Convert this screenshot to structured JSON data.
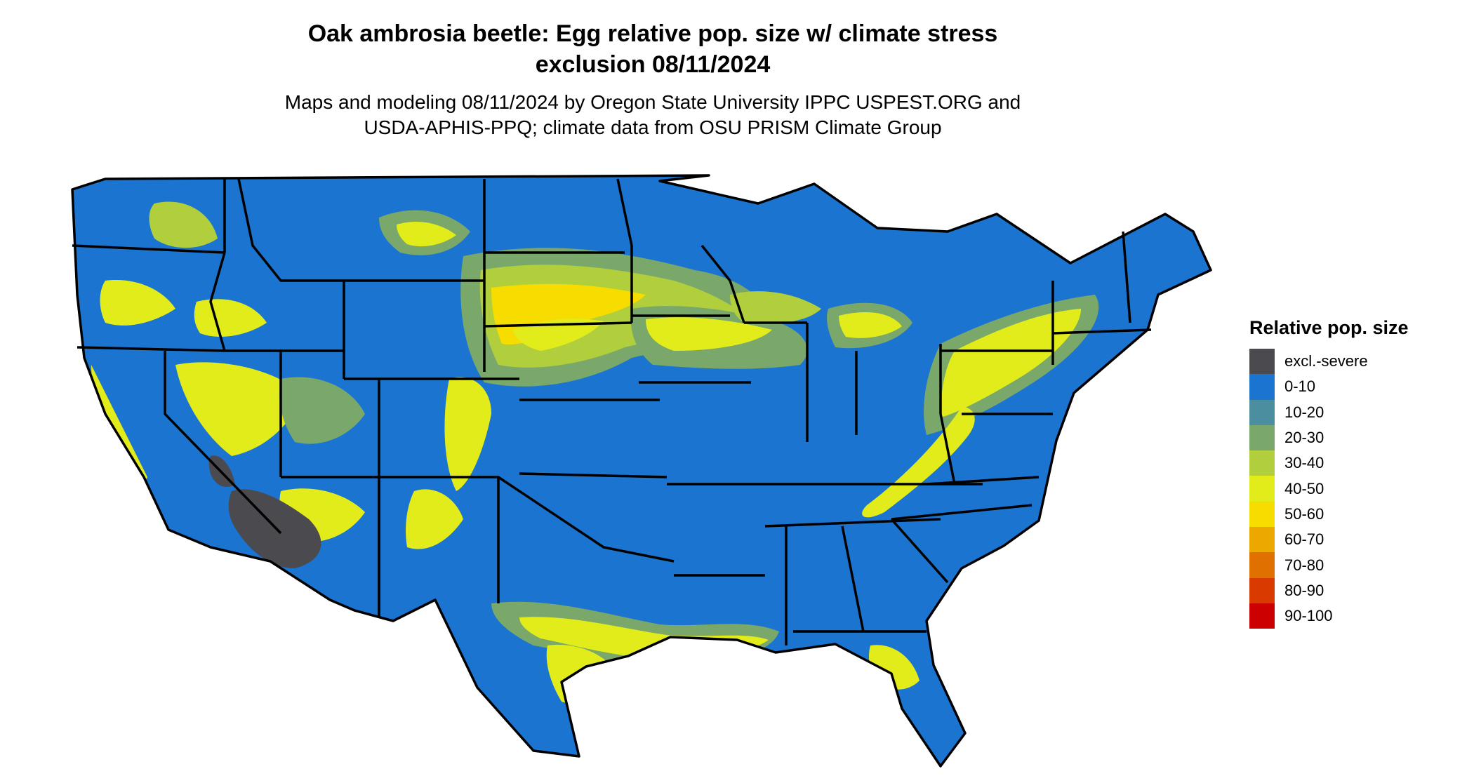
{
  "title": {
    "line1": "Oak ambrosia beetle: Egg relative pop. size w/ climate stress",
    "line2": "exclusion 08/11/2024"
  },
  "subtitle": {
    "line1": "Maps and modeling 08/11/2024 by Oregon State University IPPC USPEST.ORG and",
    "line2": "USDA-APHIS-PPQ; climate data from OSU PRISM Climate Group"
  },
  "legend": {
    "title": "Relative pop. size",
    "items": [
      {
        "label": "excl.-severe",
        "color": "#4a4a4f"
      },
      {
        "label": "0-10",
        "color": "#1a74d0"
      },
      {
        "label": "10-20",
        "color": "#4a8ea0"
      },
      {
        "label": "20-30",
        "color": "#7aa86a"
      },
      {
        "label": "30-40",
        "color": "#b1cf3c"
      },
      {
        "label": "40-50",
        "color": "#e2ec1a"
      },
      {
        "label": "50-60",
        "color": "#f7dc00"
      },
      {
        "label": "60-70",
        "color": "#eda800"
      },
      {
        "label": "70-80",
        "color": "#e07000"
      },
      {
        "label": "80-90",
        "color": "#d83a00"
      },
      {
        "label": "90-100",
        "color": "#cc0000"
      }
    ]
  },
  "map": {
    "region": "Contiguous United States",
    "base_color": "#1a74d0",
    "border_color": "#000000"
  }
}
